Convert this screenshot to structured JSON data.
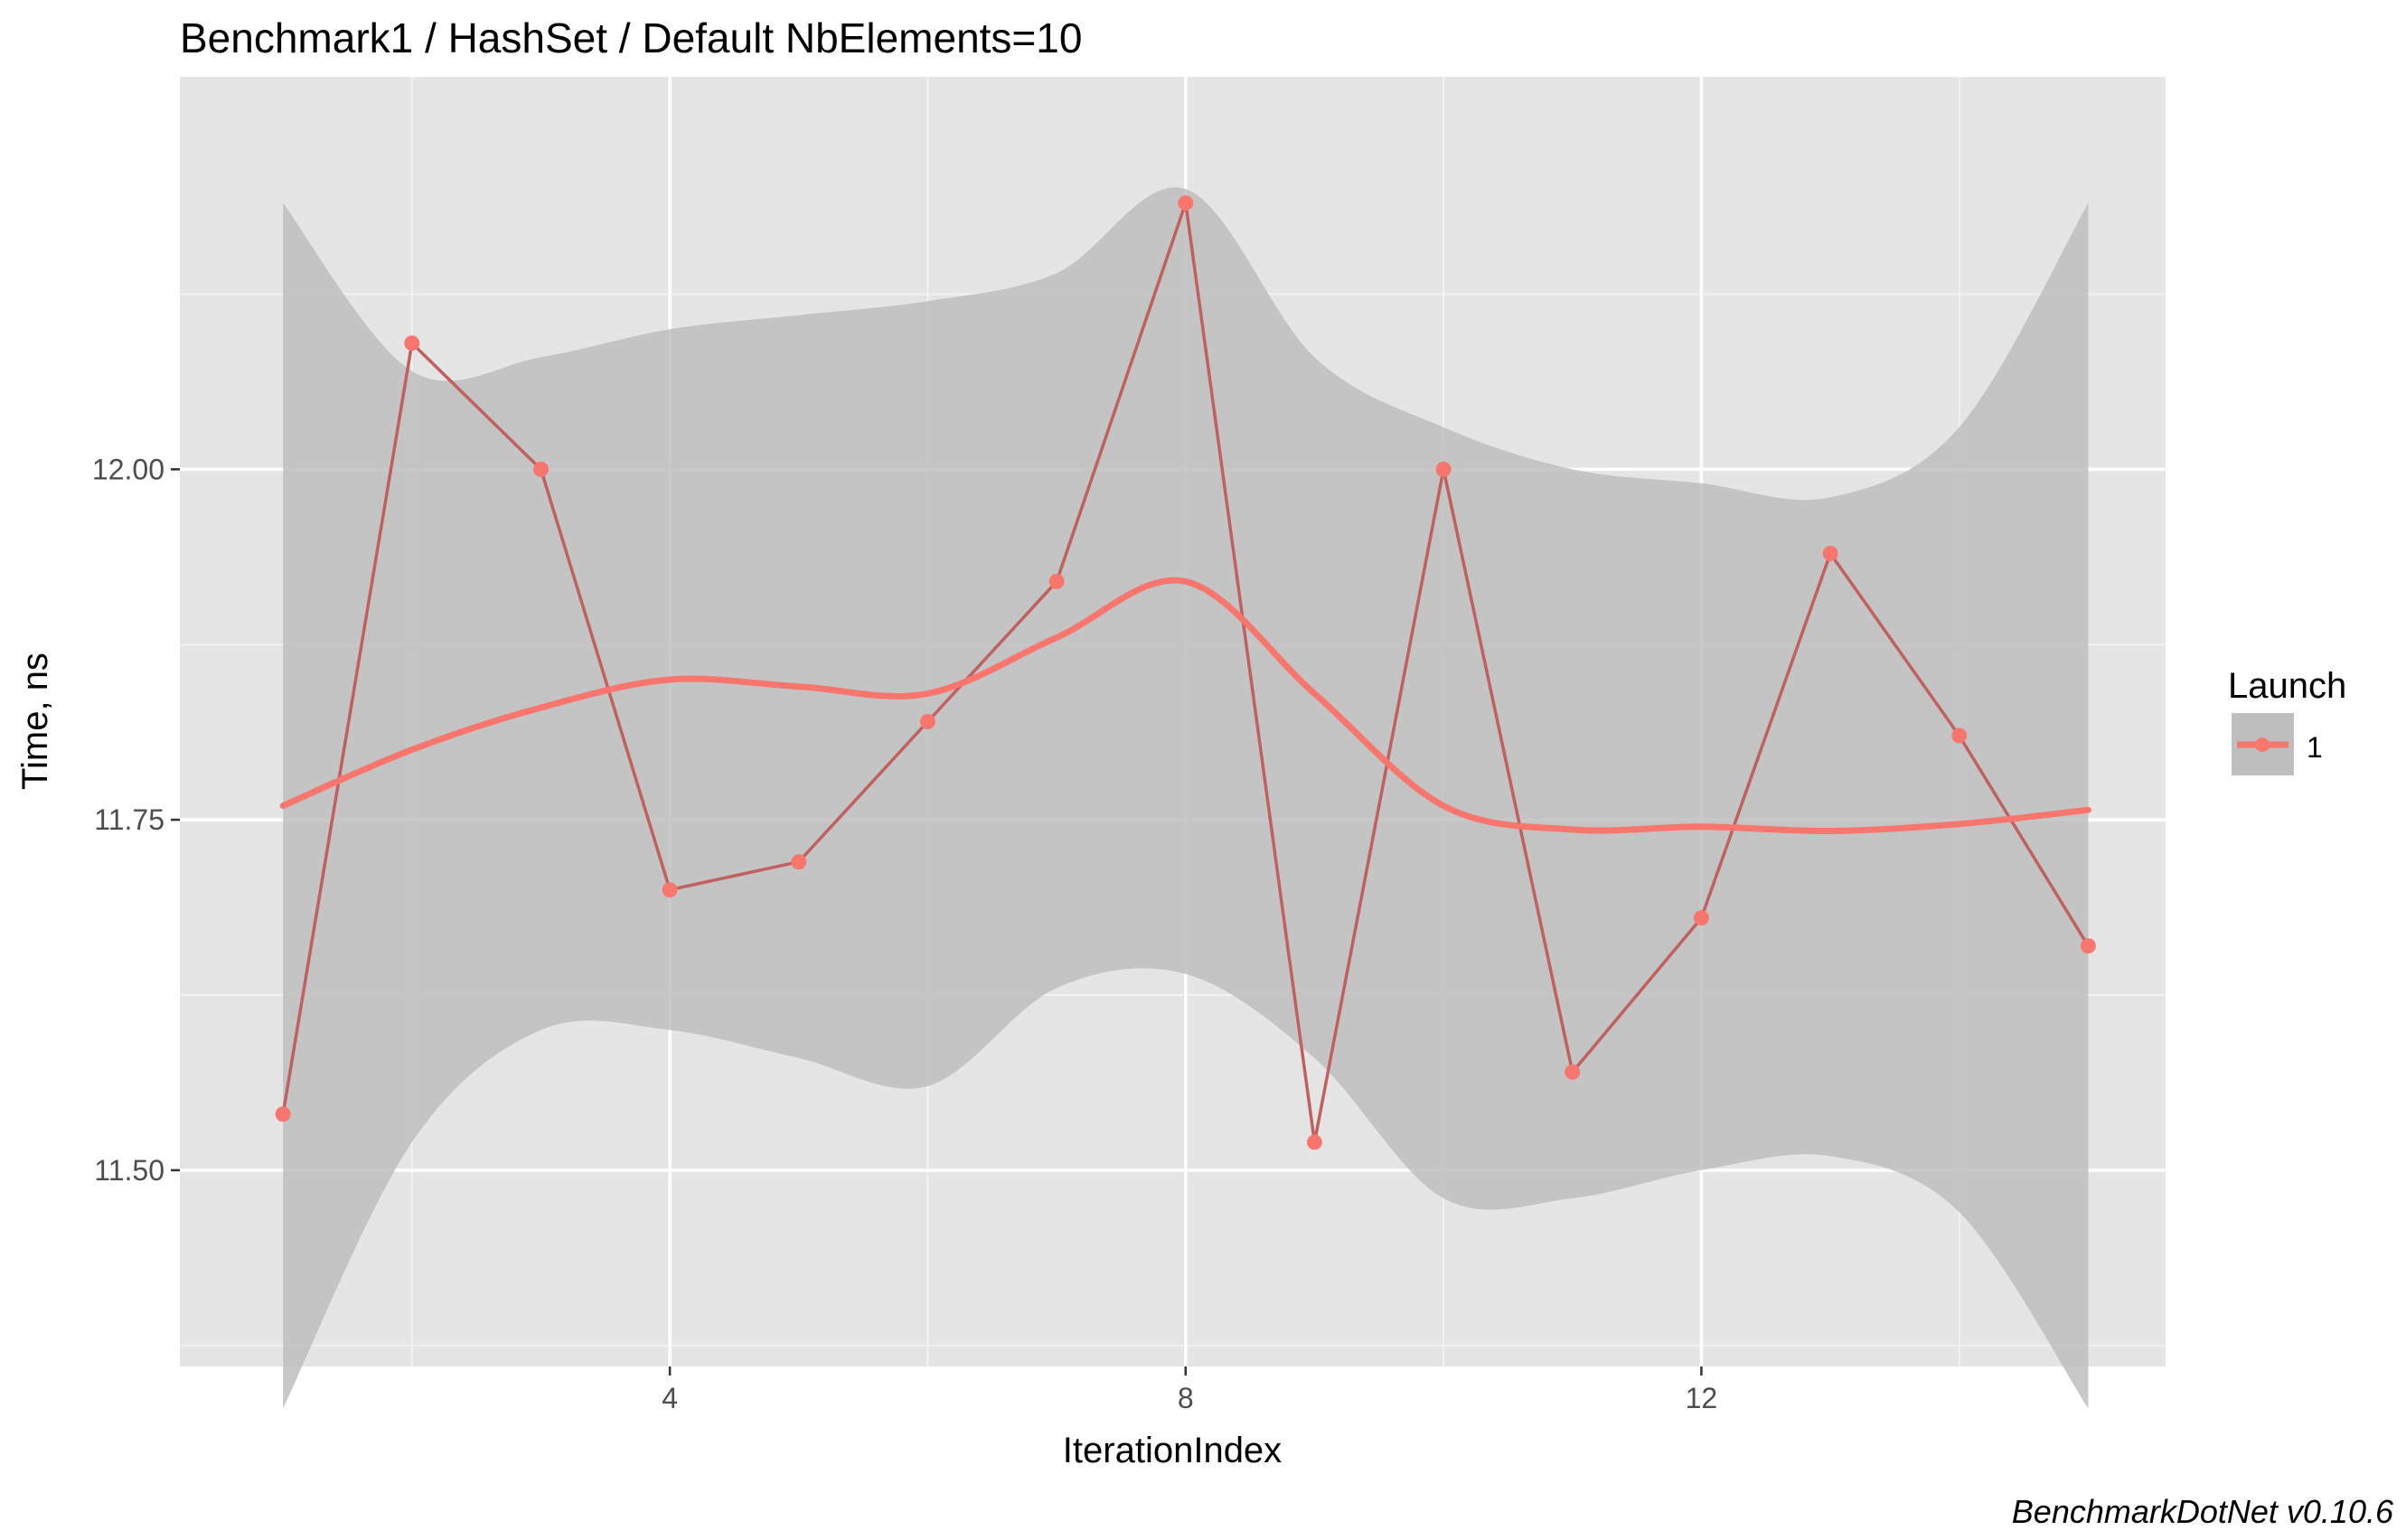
{
  "chart_data": {
    "type": "line",
    "title": "Benchmark1 / HashSet / Default NbElements=10",
    "xlabel": "IterationIndex",
    "ylabel": "Time, ns",
    "caption": "BenchmarkDotNet v0.10.6",
    "xlim": [
      0.2,
      15.6
    ],
    "ylim": [
      11.36,
      12.28
    ],
    "x_ticks": [
      {
        "value": 4,
        "label": "4"
      },
      {
        "value": 8,
        "label": "8"
      },
      {
        "value": 12,
        "label": "12"
      }
    ],
    "x_minor_ticks": [
      2,
      6,
      10,
      14
    ],
    "y_ticks": [
      {
        "value": 11.5,
        "label": "11.50"
      },
      {
        "value": 11.75,
        "label": "11.75"
      },
      {
        "value": 12.0,
        "label": "12.00"
      }
    ],
    "y_minor_ticks": [
      11.375,
      11.625,
      11.875,
      12.125
    ],
    "grid": true,
    "legend": {
      "title": "Launch",
      "placement": "right",
      "items": [
        {
          "label": "1"
        }
      ]
    },
    "series": [
      {
        "name": "1",
        "color": "#F8766D",
        "x": [
          1,
          2,
          3,
          4,
          5,
          6,
          7,
          8,
          9,
          10,
          11,
          12,
          13,
          14,
          15
        ],
        "values": [
          11.54,
          12.09,
          12.0,
          11.7,
          11.72,
          11.82,
          11.92,
          12.19,
          11.52,
          12.0,
          11.57,
          11.68,
          11.94,
          11.81,
          11.66
        ]
      }
    ],
    "smooth": {
      "color": "#F8766D",
      "band_color": "#BEBEBE",
      "x": [
        1,
        2,
        3,
        4,
        5,
        6,
        7,
        8,
        9,
        10,
        11,
        12,
        13,
        14,
        15
      ],
      "fit": [
        11.76,
        11.8,
        11.83,
        11.85,
        11.845,
        11.84,
        11.88,
        11.92,
        11.84,
        11.76,
        11.743,
        11.745,
        11.742,
        11.747,
        11.757
      ],
      "upper": [
        12.19,
        12.07,
        12.08,
        12.1,
        12.11,
        12.12,
        12.14,
        12.2,
        12.08,
        12.03,
        12.0,
        11.99,
        11.98,
        12.03,
        12.19
      ],
      "lower": [
        11.33,
        11.52,
        11.6,
        11.6,
        11.58,
        11.56,
        11.63,
        11.64,
        11.58,
        11.48,
        11.48,
        11.5,
        11.51,
        11.47,
        11.33
      ]
    }
  },
  "colors": {
    "panel_background": "#E5E5E5",
    "grid_major": "#FFFFFF",
    "point_color": "#F8766D",
    "line_color": "#C0605F",
    "band": "#BEBEBE"
  }
}
